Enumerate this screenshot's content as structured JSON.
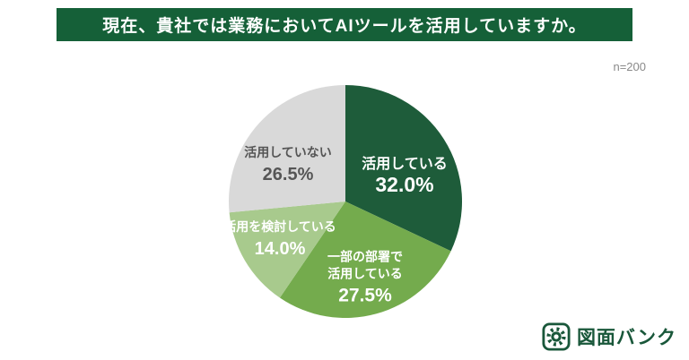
{
  "header": {
    "title": "現在、貴社では業務においてAIツールを活用していますか。",
    "bg_color": "#156038",
    "text_color": "#ffffff"
  },
  "sample_size_label": "n=200",
  "chart_data": {
    "type": "pie",
    "title": "現在、貴社では業務においてAIツールを活用していますか。",
    "sample_size": 200,
    "start_angle_deg": 0,
    "direction": "clockwise",
    "legend_position": "none",
    "slices": [
      {
        "label": "活用している",
        "label_lines": [
          "活用している"
        ],
        "value": 32.0,
        "percent_label": "32.0%",
        "color": "#1e5c3a",
        "text_color": "#ffffff",
        "label_pos": [
          66,
          -28
        ],
        "label_size": 16,
        "percent_size": 23
      },
      {
        "label": "一部の部署で活用している",
        "label_lines": [
          "一部の部署で",
          "活用している"
        ],
        "value": 27.5,
        "percent_label": "27.5%",
        "color": "#74ab4d",
        "text_color": "#ffffff",
        "label_pos": [
          22,
          85
        ],
        "label_size": 14,
        "percent_size": 21
      },
      {
        "label": "活用を検討している",
        "label_lines": [
          "活用を検討している"
        ],
        "value": 14.0,
        "percent_label": "14.0%",
        "color": "#a8ca8d",
        "text_color": "#ffffff",
        "label_pos": [
          -73,
          42
        ],
        "label_size": 14,
        "percent_size": 20
      },
      {
        "label": "活用していない",
        "label_lines": [
          "活用していない"
        ],
        "value": 26.5,
        "percent_label": "26.5%",
        "color": "#d9d9d9",
        "text_color": "#555555",
        "label_pos": [
          -64,
          -41
        ],
        "label_size": 14,
        "percent_size": 20
      }
    ]
  },
  "logo": {
    "text": "図面バンク",
    "color": "#19573a"
  }
}
